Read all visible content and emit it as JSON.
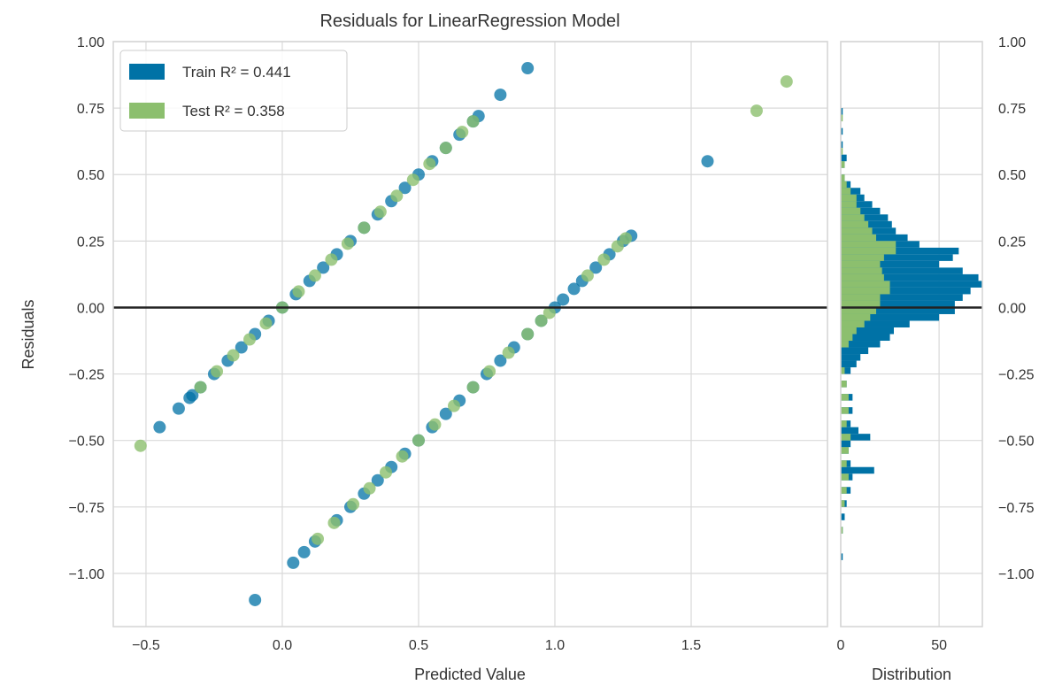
{
  "chart_data": {
    "type": "scatter",
    "title": "Residuals for LinearRegression Model",
    "xlabel": "Predicted Value",
    "ylabel": "Residuals",
    "xlim": [
      -0.62,
      2.0
    ],
    "ylim": [
      -1.2,
      1.0
    ],
    "xticks": [
      {
        "v": -0.5,
        "label": "−0.5"
      },
      {
        "v": 0.0,
        "label": "0.0"
      },
      {
        "v": 0.5,
        "label": "0.5"
      },
      {
        "v": 1.0,
        "label": "1.0"
      },
      {
        "v": 1.5,
        "label": "1.5"
      }
    ],
    "yticks": [
      {
        "v": 1.0,
        "label": "1.00"
      },
      {
        "v": 0.75,
        "label": "0.75"
      },
      {
        "v": 0.5,
        "label": "0.50"
      },
      {
        "v": 0.25,
        "label": "0.25"
      },
      {
        "v": 0.0,
        "label": "0.00"
      },
      {
        "v": -0.25,
        "label": "−0.25"
      },
      {
        "v": -0.5,
        "label": "−0.50"
      },
      {
        "v": -0.75,
        "label": "−0.75"
      },
      {
        "v": -1.0,
        "label": "−1.00"
      }
    ],
    "grid": true,
    "legend_position": "top-left",
    "zero_line": 0,
    "series": [
      {
        "name": "Train",
        "legend": "Train R² = 0.441",
        "color": "#0072a6",
        "points": [
          [
            -0.45,
            -0.45
          ],
          [
            -0.38,
            -0.38
          ],
          [
            -0.34,
            -0.34
          ],
          [
            -0.33,
            -0.33
          ],
          [
            -0.3,
            -0.3
          ],
          [
            -0.25,
            -0.25
          ],
          [
            -0.2,
            -0.2
          ],
          [
            -0.15,
            -0.15
          ],
          [
            -0.1,
            -0.1
          ],
          [
            -0.05,
            -0.05
          ],
          [
            0.0,
            0.0
          ],
          [
            0.05,
            0.05
          ],
          [
            0.1,
            0.1
          ],
          [
            0.15,
            0.15
          ],
          [
            0.2,
            0.2
          ],
          [
            0.25,
            0.25
          ],
          [
            0.3,
            0.3
          ],
          [
            0.35,
            0.35
          ],
          [
            0.4,
            0.4
          ],
          [
            0.45,
            0.45
          ],
          [
            0.5,
            0.5
          ],
          [
            0.55,
            0.55
          ],
          [
            0.6,
            0.6
          ],
          [
            0.65,
            0.65
          ],
          [
            0.7,
            0.7
          ],
          [
            0.72,
            0.72
          ],
          [
            0.8,
            0.8
          ],
          [
            0.9,
            0.9
          ],
          [
            -0.1,
            -1.1
          ],
          [
            0.04,
            -0.96
          ],
          [
            0.08,
            -0.92
          ],
          [
            0.12,
            -0.88
          ],
          [
            0.2,
            -0.8
          ],
          [
            0.25,
            -0.75
          ],
          [
            0.3,
            -0.7
          ],
          [
            0.35,
            -0.65
          ],
          [
            0.4,
            -0.6
          ],
          [
            0.45,
            -0.55
          ],
          [
            0.5,
            -0.5
          ],
          [
            0.55,
            -0.45
          ],
          [
            0.6,
            -0.4
          ],
          [
            0.65,
            -0.35
          ],
          [
            0.7,
            -0.3
          ],
          [
            0.75,
            -0.25
          ],
          [
            0.8,
            -0.2
          ],
          [
            0.85,
            -0.15
          ],
          [
            0.9,
            -0.1
          ],
          [
            0.95,
            -0.05
          ],
          [
            1.0,
            0.0
          ],
          [
            1.03,
            0.03
          ],
          [
            1.07,
            0.07
          ],
          [
            1.1,
            0.1
          ],
          [
            1.15,
            0.15
          ],
          [
            1.2,
            0.2
          ],
          [
            1.25,
            0.25
          ],
          [
            1.28,
            0.27
          ],
          [
            1.56,
            0.55
          ]
        ]
      },
      {
        "name": "Test",
        "legend": "Test R² = 0.358",
        "color": "#8cbf6e",
        "points": [
          [
            -0.52,
            -0.52
          ],
          [
            -0.3,
            -0.3
          ],
          [
            -0.24,
            -0.24
          ],
          [
            -0.18,
            -0.18
          ],
          [
            -0.12,
            -0.12
          ],
          [
            -0.06,
            -0.06
          ],
          [
            0.0,
            0.0
          ],
          [
            0.06,
            0.06
          ],
          [
            0.12,
            0.12
          ],
          [
            0.18,
            0.18
          ],
          [
            0.24,
            0.24
          ],
          [
            0.3,
            0.3
          ],
          [
            0.36,
            0.36
          ],
          [
            0.42,
            0.42
          ],
          [
            0.48,
            0.48
          ],
          [
            0.54,
            0.54
          ],
          [
            0.6,
            0.6
          ],
          [
            0.66,
            0.66
          ],
          [
            0.7,
            0.7
          ],
          [
            0.13,
            -0.87
          ],
          [
            0.19,
            -0.81
          ],
          [
            0.26,
            -0.74
          ],
          [
            0.32,
            -0.68
          ],
          [
            0.38,
            -0.62
          ],
          [
            0.44,
            -0.56
          ],
          [
            0.5,
            -0.5
          ],
          [
            0.56,
            -0.44
          ],
          [
            0.63,
            -0.37
          ],
          [
            0.7,
            -0.3
          ],
          [
            0.76,
            -0.24
          ],
          [
            0.83,
            -0.17
          ],
          [
            0.9,
            -0.1
          ],
          [
            0.95,
            -0.05
          ],
          [
            0.98,
            -0.02
          ],
          [
            1.12,
            0.12
          ],
          [
            1.18,
            0.18
          ],
          [
            1.23,
            0.23
          ],
          [
            1.26,
            0.26
          ],
          [
            1.74,
            0.74
          ],
          [
            1.85,
            0.85
          ]
        ]
      }
    ],
    "distribution": {
      "xlabel": "Distribution",
      "xticks": [
        {
          "v": 0,
          "label": "0"
        },
        {
          "v": 50,
          "label": "50"
        }
      ],
      "xlim": [
        0,
        72
      ],
      "bin_width": 0.025,
      "train_bins": [
        [
          0.725,
          1
        ],
        [
          0.65,
          1
        ],
        [
          0.6,
          1
        ],
        [
          0.55,
          3
        ],
        [
          0.525,
          2
        ],
        [
          0.475,
          2
        ],
        [
          0.45,
          5
        ],
        [
          0.425,
          10
        ],
        [
          0.4,
          12
        ],
        [
          0.375,
          16
        ],
        [
          0.35,
          20
        ],
        [
          0.325,
          24
        ],
        [
          0.3,
          26
        ],
        [
          0.275,
          28
        ],
        [
          0.25,
          34
        ],
        [
          0.225,
          40
        ],
        [
          0.2,
          60
        ],
        [
          0.175,
          57
        ],
        [
          0.15,
          50
        ],
        [
          0.125,
          62
        ],
        [
          0.1,
          70
        ],
        [
          0.075,
          72
        ],
        [
          0.05,
          66
        ],
        [
          0.025,
          62
        ],
        [
          0.0,
          58
        ],
        [
          -0.025,
          58
        ],
        [
          -0.05,
          50
        ],
        [
          -0.075,
          35
        ],
        [
          -0.1,
          27
        ],
        [
          -0.125,
          25
        ],
        [
          -0.15,
          20
        ],
        [
          -0.175,
          14
        ],
        [
          -0.2,
          10
        ],
        [
          -0.225,
          8
        ],
        [
          -0.25,
          5
        ],
        [
          -0.3,
          3
        ],
        [
          -0.35,
          6
        ],
        [
          -0.4,
          6
        ],
        [
          -0.45,
          5
        ],
        [
          -0.475,
          9
        ],
        [
          -0.5,
          15
        ],
        [
          -0.525,
          5
        ],
        [
          -0.55,
          4
        ],
        [
          -0.6,
          5
        ],
        [
          -0.625,
          17
        ],
        [
          -0.65,
          6
        ],
        [
          -0.7,
          5
        ],
        [
          -0.75,
          3
        ],
        [
          -0.8,
          2
        ],
        [
          -0.85,
          1
        ],
        [
          -0.95,
          1
        ]
      ],
      "test_bins": [
        [
          0.7,
          1
        ],
        [
          0.575,
          1
        ],
        [
          0.525,
          2
        ],
        [
          0.475,
          2
        ],
        [
          0.45,
          3
        ],
        [
          0.425,
          5
        ],
        [
          0.4,
          8
        ],
        [
          0.375,
          8
        ],
        [
          0.35,
          10
        ],
        [
          0.325,
          12
        ],
        [
          0.3,
          14
        ],
        [
          0.275,
          16
        ],
        [
          0.25,
          18
        ],
        [
          0.225,
          28
        ],
        [
          0.2,
          28
        ],
        [
          0.175,
          22
        ],
        [
          0.15,
          20
        ],
        [
          0.125,
          21
        ],
        [
          0.1,
          22
        ],
        [
          0.075,
          25
        ],
        [
          0.05,
          25
        ],
        [
          0.025,
          20
        ],
        [
          0.0,
          20
        ],
        [
          -0.025,
          18
        ],
        [
          -0.05,
          15
        ],
        [
          -0.075,
          12
        ],
        [
          -0.1,
          8
        ],
        [
          -0.125,
          6
        ],
        [
          -0.15,
          4
        ],
        [
          -0.25,
          2
        ],
        [
          -0.3,
          3
        ],
        [
          -0.35,
          4
        ],
        [
          -0.4,
          4
        ],
        [
          -0.45,
          3
        ],
        [
          -0.5,
          5
        ],
        [
          -0.55,
          4
        ],
        [
          -0.6,
          3
        ],
        [
          -0.65,
          4
        ],
        [
          -0.7,
          3
        ],
        [
          -0.75,
          2
        ],
        [
          -0.85,
          1
        ]
      ]
    }
  }
}
